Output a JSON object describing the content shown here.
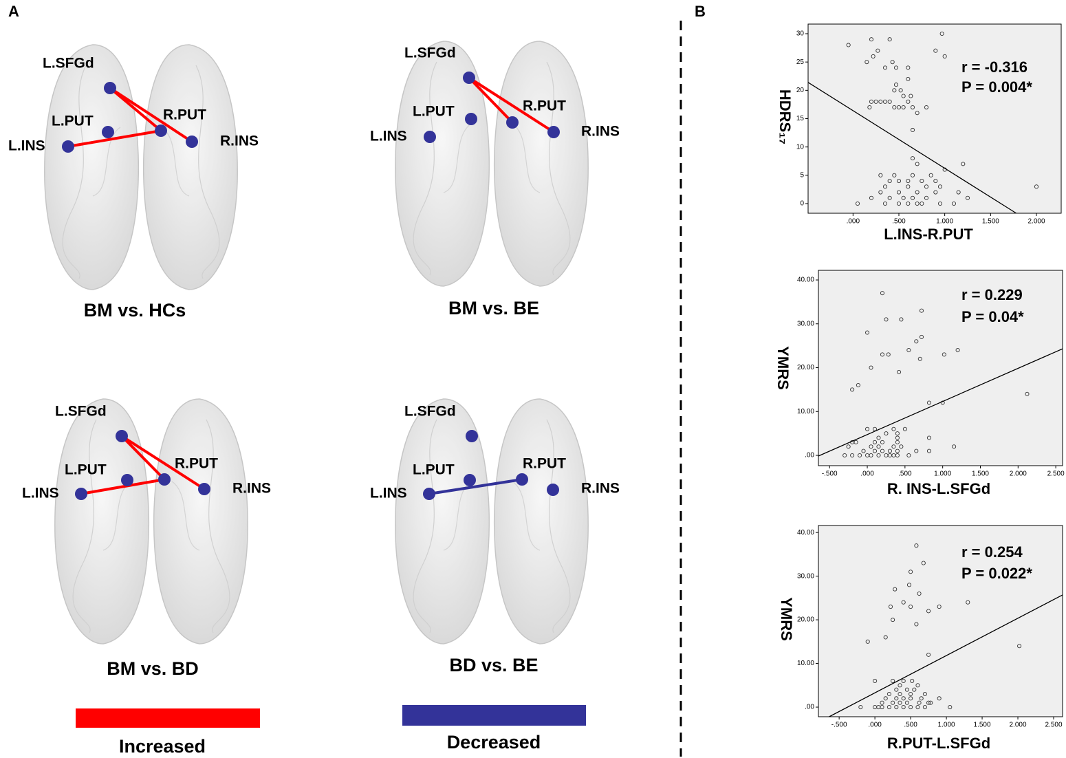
{
  "panel_label_a": "A",
  "panel_label_b": "B",
  "panel_a": [
    {
      "title": "BM vs. HCs",
      "nodes": [
        "L.SFGd",
        "L.PUT",
        "R.PUT",
        "L.INS",
        "R.INS"
      ]
    },
    {
      "title": "BM vs. BE",
      "nodes": [
        "L.SFGd",
        "L.PUT",
        "R.PUT",
        "L.INS",
        "R.INS"
      ]
    },
    {
      "title": "BM vs. BD",
      "nodes": [
        "L.SFGd",
        "L.PUT",
        "R.PUT",
        "L.INS",
        "R.INS"
      ]
    },
    {
      "title": "BD vs. BE",
      "nodes": [
        "L.SFGd",
        "L.PUT",
        "R.PUT",
        "L.INS",
        "R.INS"
      ]
    }
  ],
  "legend": [
    {
      "name": "Increased",
      "color": "#ff0000"
    },
    {
      "name": "Decreased",
      "color": "#333399"
    }
  ],
  "chart_data": [
    {
      "type": "scatter",
      "x_label": "L.INS-R.PUT",
      "y_label": "HDRS₁₇",
      "annotations": [
        "r = -0.316",
        "P = 0.004*"
      ],
      "xlim": [
        -0.49,
        2.27
      ],
      "ylim": [
        -1.7,
        31.7
      ],
      "xticks": [
        {
          "value": 0,
          "label": ".000"
        },
        {
          "value": 0.5,
          "label": ".500"
        },
        {
          "value": 1,
          "label": "1.000"
        },
        {
          "value": 1.5,
          "label": "1.500"
        },
        {
          "value": 2,
          "label": "2.000"
        }
      ],
      "yticks": [
        0,
        5,
        10,
        15,
        20,
        25,
        30
      ],
      "fit_line": {
        "x": [
          -0.49,
          1.78
        ],
        "y": [
          21.4,
          -1.7
        ]
      },
      "x": [
        -0.05,
        0.2,
        0.27,
        0.4,
        0.97,
        0.15,
        0.22,
        0.43,
        0.47,
        0.6,
        0.2,
        0.18,
        0.25,
        0.3,
        0.35,
        0.4,
        0.45,
        0.5,
        0.55,
        0.6,
        0.65,
        0.7,
        0.8,
        0.52,
        0.55,
        0.6,
        0.63,
        0.47,
        0.45,
        0.65,
        0.9,
        1.0,
        0.35,
        0.35,
        0.5,
        0.6,
        0.7,
        0.75,
        0.95,
        1.1,
        0.4,
        0.55,
        0.65,
        0.8,
        1.25,
        0.3,
        0.5,
        0.7,
        0.9,
        1.15,
        0.35,
        0.6,
        0.8,
        0.95,
        0.4,
        0.5,
        0.6,
        0.75,
        0.9,
        0.45,
        0.65,
        1.2,
        0.65,
        0.7,
        1.0,
        2.0,
        0.2,
        0.05,
        0.3,
        0.85
      ],
      "values": [
        28,
        29,
        27,
        29,
        30,
        25,
        26,
        25,
        24,
        24,
        18,
        17,
        18,
        18,
        18,
        18,
        17,
        17,
        17,
        18,
        17,
        16,
        17,
        20,
        19,
        22,
        19,
        21,
        20,
        13,
        27,
        26,
        24,
        0,
        0,
        0,
        0,
        0,
        0,
        0,
        1,
        1,
        1,
        1,
        1,
        2,
        2,
        2,
        2,
        2,
        3,
        3,
        3,
        3,
        4,
        4,
        4,
        4,
        4,
        5,
        5,
        7,
        8,
        7,
        6,
        3,
        1,
        0,
        5,
        5
      ]
    },
    {
      "type": "scatter",
      "x_label": "R. INS-L.SFGd",
      "y_label": "YMRS",
      "annotations": [
        "r = 0.229",
        "P = 0.04*"
      ],
      "xlim": [
        -0.648,
        2.59
      ],
      "ylim": [
        -2.35,
        42.2
      ],
      "xticks": [
        {
          "value": -0.5,
          "label": "-.500"
        },
        {
          "value": 0,
          "label": ".000"
        },
        {
          "value": 0.5,
          "label": ".500"
        },
        {
          "value": 1,
          "label": "1.000"
        },
        {
          "value": 1.5,
          "label": "1.500"
        },
        {
          "value": 2,
          "label": "2.000"
        },
        {
          "value": 2.5,
          "label": "2.500"
        }
      ],
      "yticks": [
        {
          "value": 0,
          "label": ".00"
        },
        {
          "value": 10,
          "label": "10.00"
        },
        {
          "value": 20,
          "label": "20.00"
        },
        {
          "value": 30,
          "label": "30.00"
        },
        {
          "value": 40,
          "label": "40.00"
        }
      ],
      "fit_line": {
        "x": [
          -0.648,
          2.59
        ],
        "y": [
          -0.15,
          24.3
        ]
      },
      "x": [
        0.2,
        0.25,
        0.45,
        0.72,
        0.0,
        0.65,
        0.72,
        0.55,
        0.7,
        0.2,
        0.28,
        1.02,
        1.2,
        0.05,
        0.42,
        -0.2,
        -0.12,
        0.82,
        1.0,
        2.12,
        1.15,
        0.82,
        0.82,
        0.65,
        -0.3,
        -0.2,
        -0.1,
        0.0,
        0.05,
        0.15,
        0.25,
        0.3,
        0.35,
        0.4,
        0.55,
        -0.05,
        0.1,
        0.2,
        0.3,
        0.4,
        -0.25,
        0.05,
        0.15,
        0.35,
        0.45,
        -0.2,
        0.1,
        0.2,
        0.4,
        0.15,
        0.4,
        0.0,
        0.35,
        0.5,
        0.4,
        0.25,
        0.1,
        -0.15
      ],
      "values": [
        37,
        31,
        31,
        33,
        28,
        26,
        27,
        24,
        22,
        23,
        23,
        23,
        24,
        20,
        19,
        15,
        16,
        12,
        12,
        14,
        2,
        4,
        1,
        1,
        0,
        0,
        0,
        0,
        0,
        0,
        0,
        0,
        0,
        0,
        0,
        1,
        1,
        1,
        1,
        1,
        2,
        2,
        2,
        2,
        2,
        3,
        3,
        3,
        3,
        4,
        4,
        6,
        6,
        6,
        5,
        5,
        6,
        3
      ]
    },
    {
      "type": "scatter",
      "x_label": "R.PUT-L.SFGd",
      "y_label": "YMRS",
      "annotations": [
        "r = 0.254",
        "P = 0.022*"
      ],
      "xlim": [
        -0.79,
        2.625
      ],
      "ylim": [
        -2.2,
        41.6
      ],
      "xticks": [
        {
          "value": -0.5,
          "label": "-.500"
        },
        {
          "value": 0,
          "label": ".000"
        },
        {
          "value": 0.5,
          "label": ".500"
        },
        {
          "value": 1,
          "label": "1.000"
        },
        {
          "value": 1.5,
          "label": "1.500"
        },
        {
          "value": 2,
          "label": "2.000"
        },
        {
          "value": 2.5,
          "label": "2.500"
        }
      ],
      "yticks": [
        {
          "value": 0,
          "label": ".00"
        },
        {
          "value": 10,
          "label": "10.00"
        },
        {
          "value": 20,
          "label": "20.00"
        },
        {
          "value": 30,
          "label": "30.00"
        },
        {
          "value": 40,
          "label": "40.00"
        }
      ],
      "fit_line": {
        "x": [
          -0.64,
          2.625
        ],
        "y": [
          -2.2,
          25.7
        ]
      },
      "x": [
        0.58,
        0.5,
        0.68,
        0.48,
        0.62,
        0.28,
        0.4,
        0.5,
        0.58,
        0.22,
        0.25,
        0.75,
        0.9,
        1.3,
        2.02,
        0.15,
        -0.1,
        0.75,
        0.0,
        0.9,
        1.05,
        0.78,
        -0.2,
        0.0,
        0.05,
        0.1,
        0.2,
        0.3,
        0.4,
        0.5,
        0.6,
        0.7,
        0.1,
        0.25,
        0.35,
        0.45,
        0.62,
        0.75,
        0.15,
        0.3,
        0.4,
        0.5,
        0.65,
        0.2,
        0.35,
        0.5,
        0.3,
        0.45,
        0.55,
        0.6,
        0.25,
        0.4,
        0.52,
        0.35,
        0.7
      ],
      "values": [
        37,
        31,
        33,
        28,
        26,
        27,
        24,
        23,
        19,
        23,
        20,
        22,
        23,
        24,
        14,
        16,
        15,
        12,
        6,
        2,
        0,
        1,
        0,
        0,
        0,
        0,
        0,
        0,
        0,
        0,
        0,
        0,
        1,
        1,
        1,
        1,
        1,
        1,
        2,
        2,
        2,
        2,
        2,
        3,
        3,
        3,
        4,
        4,
        4,
        5,
        6,
        6,
        6,
        5,
        3
      ]
    }
  ]
}
